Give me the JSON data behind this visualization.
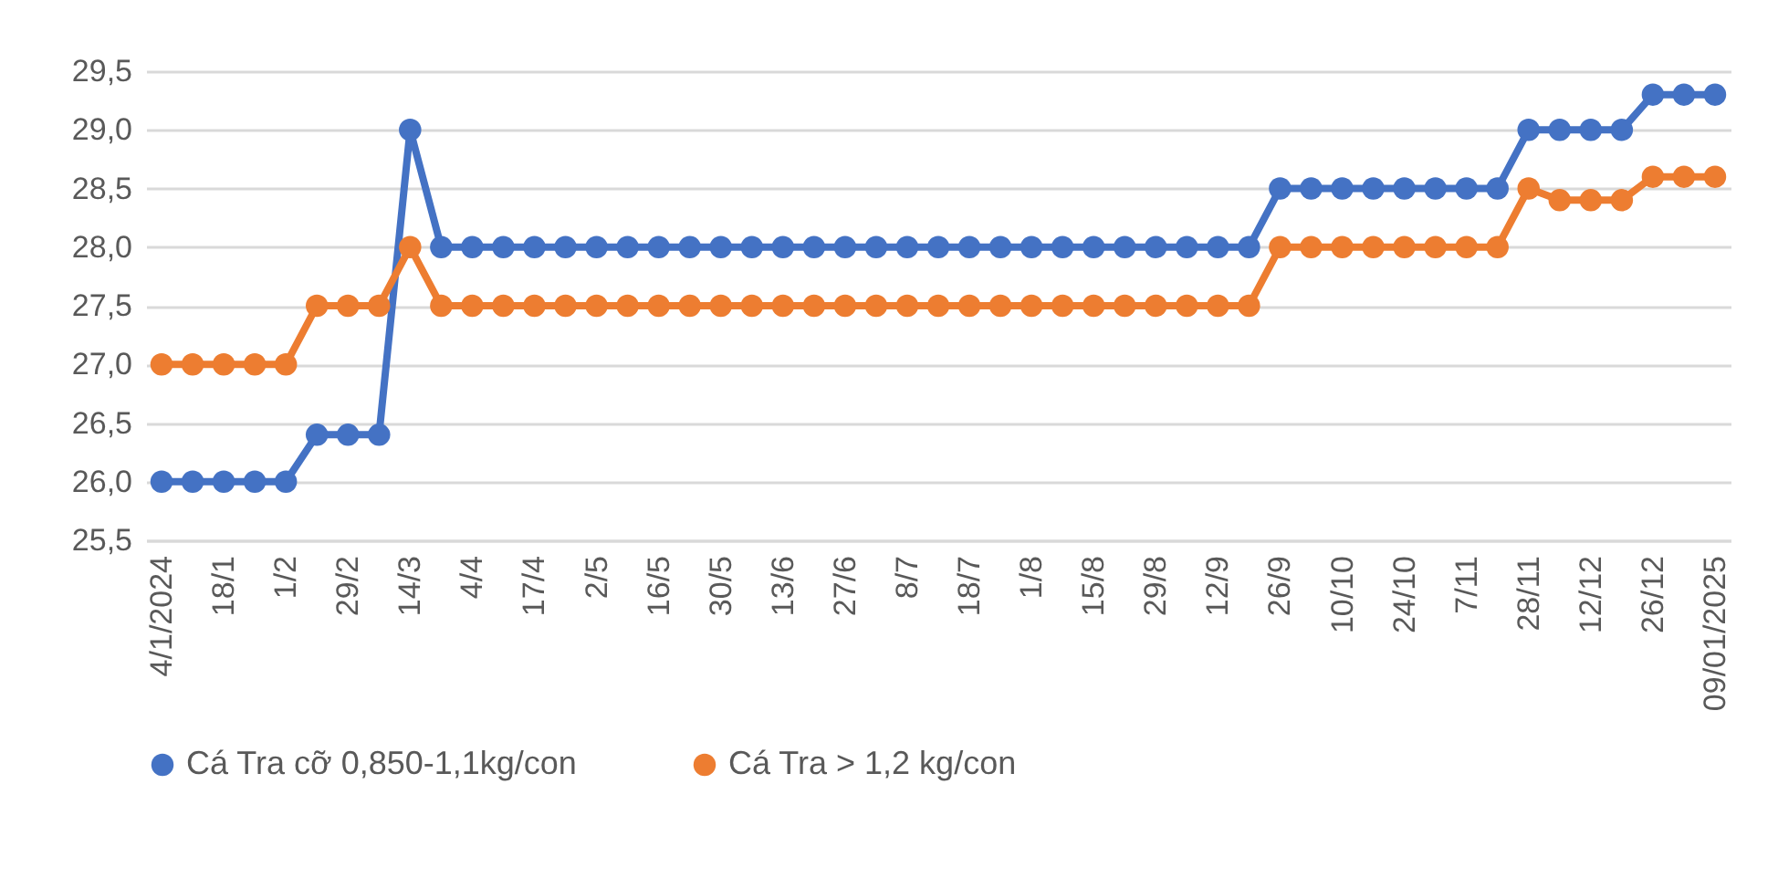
{
  "chart_data": {
    "type": "line",
    "categories": [
      "4/1/2024",
      null,
      "18/1",
      null,
      "1/2",
      null,
      "29/2",
      null,
      "14/3",
      null,
      "4/4",
      null,
      "17/4",
      null,
      "2/5",
      null,
      "16/5",
      null,
      "30/5",
      null,
      "13/6",
      null,
      "27/6",
      null,
      "8/7",
      null,
      "18/7",
      null,
      "1/8",
      null,
      "15/8",
      null,
      "29/8",
      null,
      "12/9",
      null,
      "26/9",
      null,
      "10/10",
      null,
      "24/10",
      null,
      "7/11",
      null,
      "28/11",
      null,
      "12/12",
      null,
      "26/12",
      null,
      "09/01/2025"
    ],
    "series": [
      {
        "name": "Cá Tra cỡ 0,850-1,1kg/con",
        "color": "#4472c4",
        "values": [
          26.0,
          26.0,
          26.0,
          26.0,
          26.0,
          26.4,
          26.4,
          26.4,
          29.0,
          28.0,
          28.0,
          28.0,
          28.0,
          28.0,
          28.0,
          28.0,
          28.0,
          28.0,
          28.0,
          28.0,
          28.0,
          28.0,
          28.0,
          28.0,
          28.0,
          28.0,
          28.0,
          28.0,
          28.0,
          28.0,
          28.0,
          28.0,
          28.0,
          28.0,
          28.0,
          28.0,
          28.5,
          28.5,
          28.5,
          28.5,
          28.5,
          28.5,
          28.5,
          28.5,
          29.0,
          29.0,
          29.0,
          29.0,
          29.3,
          29.3,
          29.3
        ]
      },
      {
        "name": "Cá Tra > 1,2 kg/con",
        "color": "#ed7d31",
        "values": [
          27.0,
          27.0,
          27.0,
          27.0,
          27.0,
          27.5,
          27.5,
          27.5,
          28.0,
          27.5,
          27.5,
          27.5,
          27.5,
          27.5,
          27.5,
          27.5,
          27.5,
          27.5,
          27.5,
          27.5,
          27.5,
          27.5,
          27.5,
          27.5,
          27.5,
          27.5,
          27.5,
          27.5,
          27.5,
          27.5,
          27.5,
          27.5,
          27.5,
          27.5,
          27.5,
          27.5,
          28.0,
          28.0,
          28.0,
          28.0,
          28.0,
          28.0,
          28.0,
          28.0,
          28.5,
          28.4,
          28.4,
          28.4,
          28.6,
          28.6,
          28.6
        ]
      }
    ],
    "ylim": [
      25.5,
      29.5
    ],
    "yticks": [
      {
        "value": 25.5,
        "label": "25,5"
      },
      {
        "value": 26,
        "label": "26,0"
      },
      {
        "value": 26.5,
        "label": "26,5"
      },
      {
        "value": 27,
        "label": "27,0"
      },
      {
        "value": 27.5,
        "label": "27,5"
      },
      {
        "value": 28,
        "label": "28,0"
      },
      {
        "value": 28.5,
        "label": "28,5"
      },
      {
        "value": 29,
        "label": "29,0"
      },
      {
        "value": 29.5,
        "label": "29,5"
      }
    ],
    "grid": "y",
    "legend": "bottom",
    "marker": "circle",
    "line_style": "solid"
  }
}
